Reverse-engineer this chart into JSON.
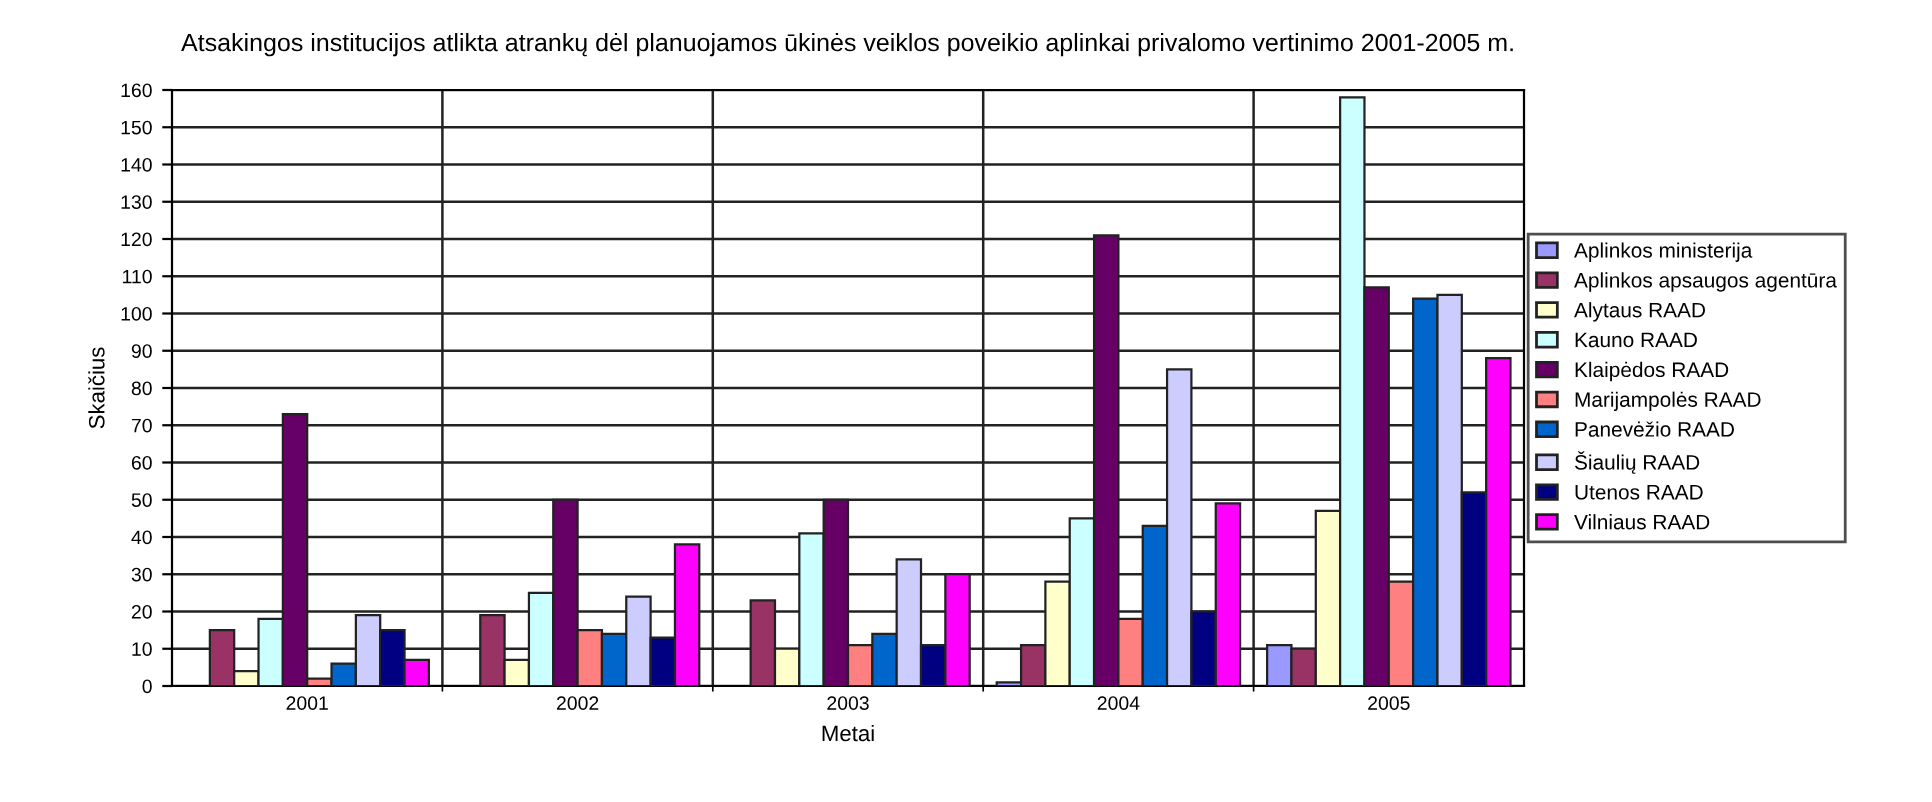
{
  "chart_data": {
    "type": "bar",
    "title": "Atsakingos institucijos atlikta atrankų dėl planuojamos ūkinės veiklos poveikio aplinkai privalomo vertinimo 2001-2005 m.",
    "xlabel": "Metai",
    "ylabel": "Skaičius",
    "categories": [
      "2001",
      "2002",
      "2003",
      "2004",
      "2005"
    ],
    "series": [
      {
        "name": "Aplinkos ministerija",
        "color": "#9999ff",
        "values": [
          null,
          null,
          null,
          1,
          11
        ]
      },
      {
        "name": "Aplinkos apsaugos agentūra",
        "color": "#993366",
        "values": [
          15,
          19,
          23,
          11,
          10
        ]
      },
      {
        "name": "Alytaus RAAD",
        "color": "#ffffcc",
        "values": [
          4,
          7,
          10,
          28,
          47
        ]
      },
      {
        "name": "Kauno RAAD",
        "color": "#ccffff",
        "values": [
          18,
          25,
          41,
          45,
          158
        ]
      },
      {
        "name": "Klaipėdos RAAD",
        "color": "#660066",
        "values": [
          73,
          50,
          50,
          121,
          107
        ]
      },
      {
        "name": "Marijampolės RAAD",
        "color": "#ff8080",
        "values": [
          2,
          15,
          11,
          18,
          28
        ]
      },
      {
        "name": "Panevėžio RAAD",
        "color": "#0066cc",
        "values": [
          6,
          14,
          14,
          43,
          104
        ]
      },
      {
        "name": "Šiaulių RAAD",
        "color": "#ccccff",
        "values": [
          19,
          24,
          34,
          85,
          105
        ]
      },
      {
        "name": "Utenos RAAD",
        "color": "#000080",
        "values": [
          15,
          13,
          11,
          20,
          52
        ]
      },
      {
        "name": "Vilniaus RAAD",
        "color": "#ff00ff",
        "values": [
          7,
          38,
          30,
          49,
          88
        ]
      }
    ],
    "ylim": [
      0,
      160
    ],
    "yticks": [
      0,
      10,
      20,
      30,
      40,
      50,
      60,
      70,
      80,
      90,
      100,
      110,
      120,
      130,
      140,
      150,
      160
    ],
    "grid": true,
    "legend": "right"
  }
}
